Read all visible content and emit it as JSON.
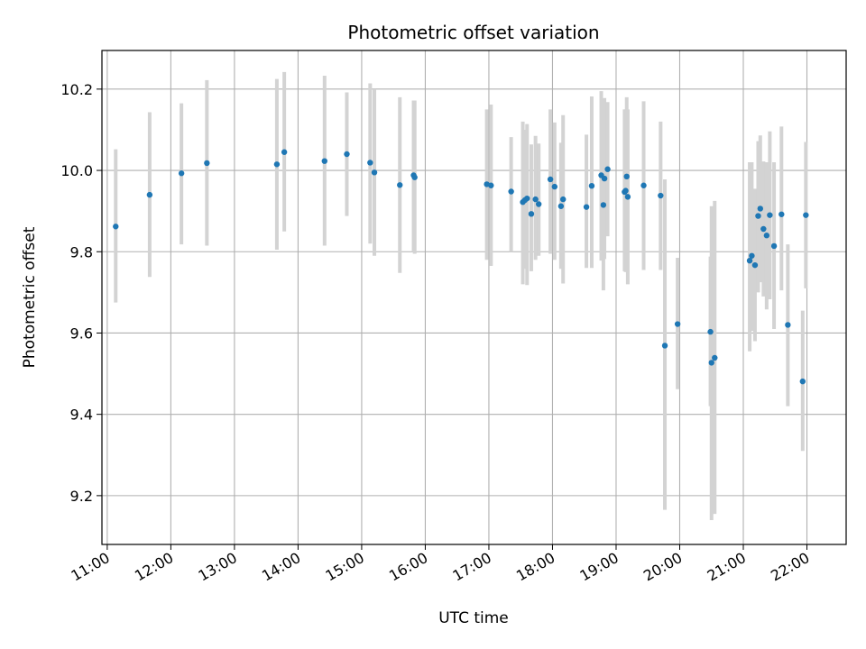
{
  "chart_data": {
    "type": "scatter",
    "title": "Photometric offset variation",
    "xlabel": "UTC time",
    "ylabel": "Photometric offset",
    "x_ticks": [
      "11:00",
      "12:00",
      "13:00",
      "14:00",
      "15:00",
      "16:00",
      "17:00",
      "18:00",
      "19:00",
      "20:00",
      "21:00",
      "22:00"
    ],
    "y_ticks": [
      9.2,
      9.4,
      9.6,
      9.8,
      10.0,
      10.2
    ],
    "xlim": [
      "10:55",
      "22:37"
    ],
    "ylim": [
      9.08,
      10.295
    ],
    "grid": true,
    "colors": {
      "point": "#1f77b4",
      "errorbar": "#d3d3d3",
      "grid": "#b0b0b0"
    },
    "series": [
      {
        "x": [
          "11:08",
          "11:40",
          "12:10",
          "12:34",
          "13:40",
          "13:47",
          "14:25",
          "14:46",
          "15:08",
          "15:12",
          "15:36",
          "15:49",
          "15:50",
          "16:58",
          "17:02",
          "17:21",
          "17:32",
          "17:34",
          "17:36",
          "17:40",
          "17:44",
          "17:47",
          "17:58",
          "18:02",
          "18:08",
          "18:10",
          "18:32",
          "18:37",
          "18:46",
          "18:48",
          "18:49",
          "18:52",
          "19:08",
          "19:09",
          "19:10",
          "19:11",
          "19:26",
          "19:42",
          "19:46",
          "19:58",
          "20:29",
          "20:30",
          "20:33",
          "21:06",
          "21:08",
          "21:11",
          "21:14",
          "21:16",
          "21:19",
          "21:22",
          "21:25",
          "21:29",
          "21:36",
          "21:42",
          "21:56",
          "21:59"
        ],
        "y": [
          9.862,
          9.94,
          9.993,
          10.018,
          10.015,
          10.045,
          10.023,
          10.04,
          10.019,
          9.995,
          9.964,
          9.988,
          9.983,
          9.966,
          9.963,
          9.948,
          9.922,
          9.927,
          9.931,
          9.893,
          9.929,
          9.917,
          9.978,
          9.96,
          9.912,
          9.929,
          9.91,
          9.962,
          9.988,
          9.915,
          9.98,
          10.003,
          9.947,
          9.95,
          9.985,
          9.935,
          9.963,
          9.938,
          9.569,
          9.622,
          9.603,
          9.527,
          9.539,
          9.778,
          9.79,
          9.767,
          9.888,
          9.906,
          9.856,
          9.84,
          9.89,
          9.814,
          9.892,
          9.62,
          9.481,
          9.89
        ],
        "yerr_low": [
          9.675,
          9.738,
          9.818,
          9.815,
          9.805,
          9.85,
          9.815,
          9.888,
          9.82,
          9.79,
          9.748,
          9.8,
          9.795,
          9.78,
          9.765,
          9.8,
          9.72,
          9.758,
          9.718,
          9.752,
          9.78,
          9.79,
          9.795,
          9.78,
          9.758,
          9.722,
          9.76,
          9.76,
          9.778,
          9.705,
          9.782,
          9.838,
          9.752,
          9.75,
          9.75,
          9.72,
          9.755,
          9.755,
          9.165,
          9.462,
          9.42,
          9.14,
          9.155,
          9.555,
          9.605,
          9.58,
          9.7,
          9.725,
          9.69,
          9.658,
          9.683,
          9.61,
          9.705,
          9.42,
          9.31,
          9.71
        ],
        "yerr_high": [
          10.052,
          10.143,
          10.165,
          10.222,
          10.225,
          10.242,
          10.233,
          10.192,
          10.214,
          10.2,
          10.18,
          10.172,
          10.172,
          10.15,
          10.162,
          10.082,
          10.12,
          10.1,
          10.114,
          10.064,
          10.085,
          10.066,
          10.15,
          10.118,
          10.068,
          10.136,
          10.088,
          10.182,
          10.195,
          10.128,
          10.178,
          10.168,
          10.15,
          10.15,
          10.18,
          10.15,
          10.17,
          10.12,
          9.978,
          9.785,
          9.788,
          9.912,
          9.925,
          10.02,
          10.02,
          9.955,
          10.072,
          10.086,
          10.022,
          10.02,
          10.096,
          10.02,
          10.108,
          9.818,
          9.655,
          10.07
        ]
      }
    ]
  }
}
